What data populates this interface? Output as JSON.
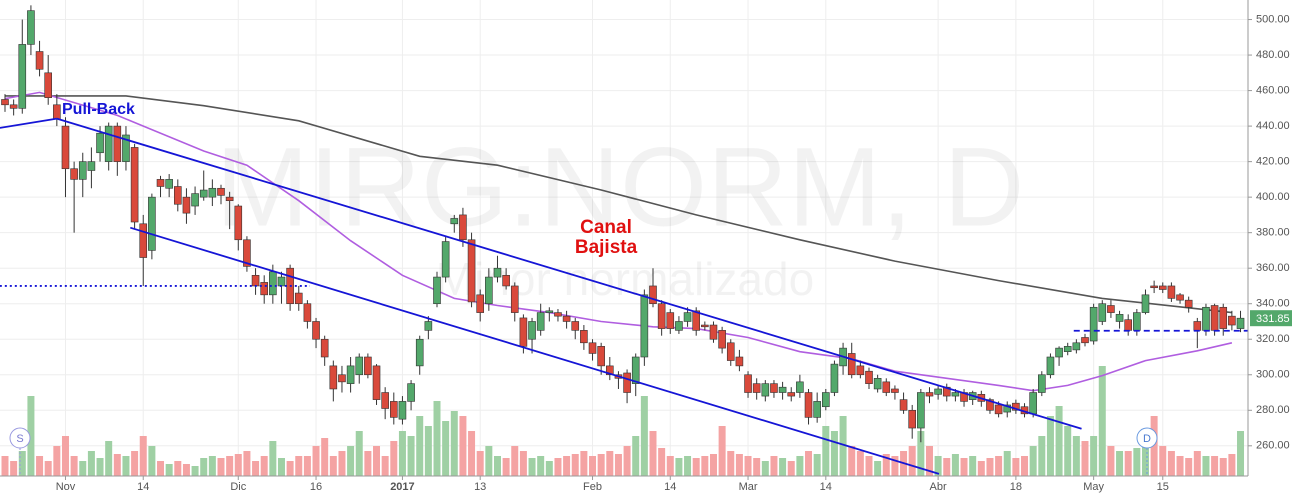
{
  "chart_data": {
    "type": "candlestick",
    "watermark_title": "MIRG:NORM, D",
    "watermark_subtitle": "Minor normalizado",
    "annotation_pullback": "Pull-Back",
    "annotation_channel": [
      "Canal",
      "Bajista"
    ],
    "markers": [
      "S",
      "D"
    ],
    "last_price": {
      "value": 331.85,
      "label": "331.85"
    },
    "up_color": "#53a86b",
    "down_color": "#d9493b",
    "volume_up_color": "#9fd0a4",
    "volume_down_color": "#f4a3a3",
    "ylim": [
      243,
      511
    ],
    "yticks": [
      {
        "value": 260,
        "label": "260.00"
      },
      {
        "value": 280,
        "label": "280.00"
      },
      {
        "value": 300,
        "label": "300.00"
      },
      {
        "value": 320,
        "label": "320.00"
      },
      {
        "value": 340,
        "label": "340.00"
      },
      {
        "value": 360,
        "label": "360.00"
      },
      {
        "value": 380,
        "label": "380.00"
      },
      {
        "value": 400,
        "label": "400.00"
      },
      {
        "value": 420,
        "label": "420.00"
      },
      {
        "value": 440,
        "label": "440.00"
      },
      {
        "value": 460,
        "label": "460.00"
      },
      {
        "value": 480,
        "label": "480.00"
      },
      {
        "value": 500,
        "label": "500.00"
      }
    ],
    "xticks": [
      {
        "value": 7,
        "label": "Nov"
      },
      {
        "value": 16,
        "label": "14"
      },
      {
        "value": 27,
        "label": "Dic"
      },
      {
        "value": 36,
        "label": "16"
      },
      {
        "value": 46,
        "label": "2017"
      },
      {
        "value": 55,
        "label": "13"
      },
      {
        "value": 68,
        "label": "Feb"
      },
      {
        "value": 77,
        "label": "14"
      },
      {
        "value": 86,
        "label": "Mar"
      },
      {
        "value": 95,
        "label": "14"
      },
      {
        "value": 108,
        "label": "Abr"
      },
      {
        "value": 117,
        "label": "18"
      },
      {
        "value": 126,
        "label": "May"
      },
      {
        "value": 134,
        "label": "15"
      }
    ],
    "grid": true,
    "ohlc": [
      [
        455,
        458,
        448,
        452
      ],
      [
        452,
        455,
        446,
        450
      ],
      [
        450,
        500,
        447,
        486
      ],
      [
        486,
        508,
        480,
        505
      ],
      [
        482,
        488,
        468,
        472
      ],
      [
        470,
        480,
        452,
        456
      ],
      [
        452,
        458,
        440,
        444
      ],
      [
        440,
        445,
        400,
        416
      ],
      [
        416,
        420,
        380,
        410
      ],
      [
        410,
        425,
        400,
        420
      ],
      [
        415,
        428,
        405,
        420
      ],
      [
        425,
        440,
        420,
        436
      ],
      [
        420,
        442,
        415,
        440
      ],
      [
        440,
        442,
        412,
        420
      ],
      [
        420,
        440,
        415,
        435
      ],
      [
        428,
        430,
        382,
        386
      ],
      [
        385,
        390,
        350,
        366
      ],
      [
        370,
        402,
        365,
        400
      ],
      [
        410,
        412,
        400,
        406
      ],
      [
        405,
        413,
        400,
        410
      ],
      [
        406,
        410,
        392,
        396
      ],
      [
        400,
        405,
        385,
        391
      ],
      [
        395,
        406,
        390,
        402
      ],
      [
        400,
        415,
        398,
        404
      ],
      [
        400,
        410,
        395,
        405
      ],
      [
        405,
        407,
        396,
        401
      ],
      [
        400,
        403,
        382,
        398
      ],
      [
        395,
        396,
        370,
        376
      ],
      [
        376,
        378,
        358,
        361
      ],
      [
        356,
        360,
        345,
        350
      ],
      [
        352,
        356,
        340,
        345
      ],
      [
        345,
        362,
        340,
        358
      ],
      [
        350,
        358,
        340,
        355
      ],
      [
        360,
        362,
        336,
        340
      ],
      [
        346,
        350,
        336,
        340
      ],
      [
        340,
        342,
        326,
        330
      ],
      [
        330,
        332,
        315,
        320
      ],
      [
        320,
        322,
        305,
        310
      ],
      [
        305,
        308,
        285,
        292
      ],
      [
        300,
        305,
        290,
        296
      ],
      [
        295,
        310,
        290,
        305
      ],
      [
        300,
        312,
        295,
        310
      ],
      [
        310,
        312,
        298,
        300
      ],
      [
        305,
        306,
        283,
        286
      ],
      [
        290,
        293,
        275,
        281
      ],
      [
        285,
        290,
        272,
        276
      ],
      [
        275,
        288,
        272,
        285
      ],
      [
        285,
        297,
        280,
        295
      ],
      [
        305,
        322,
        300,
        320
      ],
      [
        325,
        333,
        320,
        330
      ],
      [
        340,
        358,
        338,
        355
      ],
      [
        355,
        378,
        352,
        375
      ],
      [
        385,
        390,
        380,
        388
      ],
      [
        390,
        394,
        372,
        376
      ],
      [
        376,
        380,
        338,
        341
      ],
      [
        345,
        348,
        330,
        335
      ],
      [
        340,
        360,
        336,
        355
      ],
      [
        355,
        367,
        352,
        360
      ],
      [
        356,
        360,
        348,
        350
      ],
      [
        350,
        352,
        330,
        335
      ],
      [
        332,
        334,
        312,
        316
      ],
      [
        320,
        332,
        312,
        330
      ],
      [
        325,
        340,
        322,
        335
      ],
      [
        335,
        338,
        330,
        336
      ],
      [
        335,
        337,
        330,
        333
      ],
      [
        333,
        336,
        326,
        330
      ],
      [
        330,
        332,
        320,
        325
      ],
      [
        325,
        328,
        314,
        318
      ],
      [
        318,
        320,
        308,
        312
      ],
      [
        316,
        318,
        300,
        305
      ],
      [
        305,
        310,
        297,
        300
      ],
      [
        300,
        302,
        292,
        298
      ],
      [
        301,
        303,
        284,
        290
      ],
      [
        295,
        312,
        288,
        310
      ],
      [
        310,
        348,
        305,
        345
      ],
      [
        350,
        360,
        338,
        340
      ],
      [
        340,
        342,
        322,
        326
      ],
      [
        335,
        337,
        323,
        326
      ],
      [
        325,
        333,
        323,
        330
      ],
      [
        330,
        338,
        327,
        335
      ],
      [
        336,
        338,
        322,
        325
      ],
      [
        328,
        330,
        325,
        327
      ],
      [
        328,
        330,
        318,
        320
      ],
      [
        325,
        327,
        312,
        315
      ],
      [
        318,
        320,
        305,
        308
      ],
      [
        310,
        314,
        302,
        305
      ],
      [
        300,
        302,
        287,
        290
      ],
      [
        295,
        298,
        286,
        290
      ],
      [
        288,
        297,
        285,
        295
      ],
      [
        295,
        297,
        287,
        290
      ],
      [
        290,
        296,
        286,
        293
      ],
      [
        290,
        293,
        285,
        288
      ],
      [
        290,
        300,
        287,
        296
      ],
      [
        290,
        292,
        272,
        276
      ],
      [
        276,
        290,
        273,
        285
      ],
      [
        282,
        292,
        280,
        290
      ],
      [
        290,
        308,
        288,
        306
      ],
      [
        305,
        318,
        300,
        315
      ],
      [
        312,
        318,
        298,
        300
      ],
      [
        305,
        308,
        298,
        300
      ],
      [
        302,
        304,
        292,
        295
      ],
      [
        292,
        300,
        290,
        298
      ],
      [
        296,
        298,
        288,
        290
      ],
      [
        292,
        294,
        286,
        290
      ],
      [
        286,
        290,
        278,
        280
      ],
      [
        280,
        283,
        264,
        270
      ],
      [
        270,
        292,
        262,
        290
      ],
      [
        290,
        293,
        284,
        288
      ],
      [
        289,
        294,
        286,
        292
      ],
      [
        293,
        295,
        285,
        288
      ],
      [
        288,
        292,
        285,
        290
      ],
      [
        290,
        292,
        282,
        285
      ],
      [
        286,
        291,
        283,
        290
      ],
      [
        289,
        291,
        282,
        285
      ],
      [
        286,
        287,
        278,
        280
      ],
      [
        283,
        285,
        276,
        278
      ],
      [
        279,
        285,
        276,
        283
      ],
      [
        284,
        286,
        278,
        280
      ],
      [
        282,
        284,
        276,
        278
      ],
      [
        278,
        292,
        276,
        290
      ],
      [
        290,
        302,
        288,
        300
      ],
      [
        300,
        312,
        298,
        310
      ],
      [
        310,
        316,
        305,
        315
      ],
      [
        313,
        318,
        311,
        316
      ],
      [
        314,
        320,
        312,
        318
      ],
      [
        321,
        323,
        316,
        318
      ],
      [
        319,
        340,
        317,
        338
      ],
      [
        330,
        342,
        328,
        340
      ],
      [
        339,
        342,
        332,
        335
      ],
      [
        330,
        336,
        326,
        334
      ],
      [
        331,
        334,
        322,
        325
      ],
      [
        325,
        337,
        322,
        335
      ],
      [
        335,
        348,
        334,
        345
      ],
      [
        350,
        353,
        346,
        349
      ],
      [
        350,
        352,
        346,
        348
      ],
      [
        350,
        352,
        341,
        343
      ],
      [
        345,
        346,
        340,
        342
      ],
      [
        342,
        344,
        335,
        338
      ],
      [
        330,
        332,
        315,
        325
      ],
      [
        325,
        340,
        322,
        338
      ],
      [
        339,
        340,
        322,
        325
      ],
      [
        338,
        340,
        322,
        326
      ],
      [
        333,
        336,
        325,
        328
      ],
      [
        326,
        336,
        324,
        331.85
      ]
    ],
    "volume": [
      20,
      15,
      25,
      80,
      20,
      15,
      30,
      40,
      20,
      15,
      25,
      18,
      35,
      22,
      20,
      25,
      40,
      30,
      15,
      12,
      15,
      12,
      10,
      18,
      20,
      18,
      20,
      22,
      25,
      15,
      20,
      35,
      18,
      15,
      20,
      20,
      30,
      38,
      20,
      25,
      30,
      45,
      25,
      30,
      20,
      35,
      45,
      40,
      60,
      50,
      75,
      55,
      65,
      60,
      45,
      25,
      30,
      20,
      18,
      30,
      25,
      18,
      20,
      15,
      18,
      20,
      22,
      25,
      20,
      22,
      25,
      22,
      30,
      40,
      80,
      45,
      28,
      20,
      18,
      20,
      18,
      20,
      22,
      50,
      25,
      22,
      20,
      18,
      15,
      20,
      18,
      15,
      20,
      25,
      22,
      50,
      45,
      60,
      30,
      25,
      20,
      15,
      22,
      20,
      25,
      30,
      45,
      30,
      20,
      18,
      22,
      18,
      20,
      15,
      18,
      20,
      25,
      18,
      20,
      30,
      40,
      60,
      70,
      50,
      40,
      35,
      40,
      110,
      30,
      25,
      25,
      28,
      40,
      60,
      30,
      25,
      20,
      18,
      25,
      20,
      20,
      18,
      22,
      45
    ],
    "series": [
      {
        "color": "#555555",
        "x": [
          0,
          14,
          23,
          34,
          48,
          57,
          69,
          80,
          92,
          103,
          115,
          127,
          142
        ],
        "values": [
          457,
          457,
          451.5,
          443,
          423,
          418,
          404,
          390,
          376,
          364,
          353,
          343,
          335
        ]
      },
      {
        "color": "#b05ee0",
        "x": [
          0,
          4,
          13,
          23,
          28,
          34,
          40,
          46,
          52,
          57,
          63,
          69,
          75,
          80,
          86,
          92,
          98,
          103,
          109,
          115,
          119,
          123,
          127,
          132,
          138,
          142
        ],
        "values": [
          455.5,
          459,
          446,
          426,
          418,
          398,
          375.5,
          356,
          343,
          339,
          335,
          330,
          327,
          326,
          321,
          313,
          309,
          302,
          298,
          294,
          291,
          294,
          299.5,
          308,
          313.5,
          318
        ]
      }
    ],
    "lines": [
      {
        "color": "#1515d6",
        "dash": "",
        "points": [
          [
            -0.6,
            439
          ],
          [
            6,
            444.2
          ]
        ]
      },
      {
        "color": "#1515d6",
        "dash": "",
        "points": [
          [
            6,
            444.2
          ],
          [
            124.6,
            269.6
          ]
        ]
      },
      {
        "color": "#1515d6",
        "dash": "",
        "points": [
          [
            14.5,
            382.8
          ],
          [
            108.1,
            244.2
          ]
        ]
      },
      {
        "color": "#1515d6",
        "dash": "2,3",
        "points": [
          [
            -0.6,
            350
          ],
          [
            35.3,
            350
          ]
        ]
      },
      {
        "color": "#1515d6",
        "dash": "6,4",
        "points": [
          [
            123.7,
            324.8
          ],
          [
            143.9,
            324.8
          ]
        ]
      }
    ]
  }
}
